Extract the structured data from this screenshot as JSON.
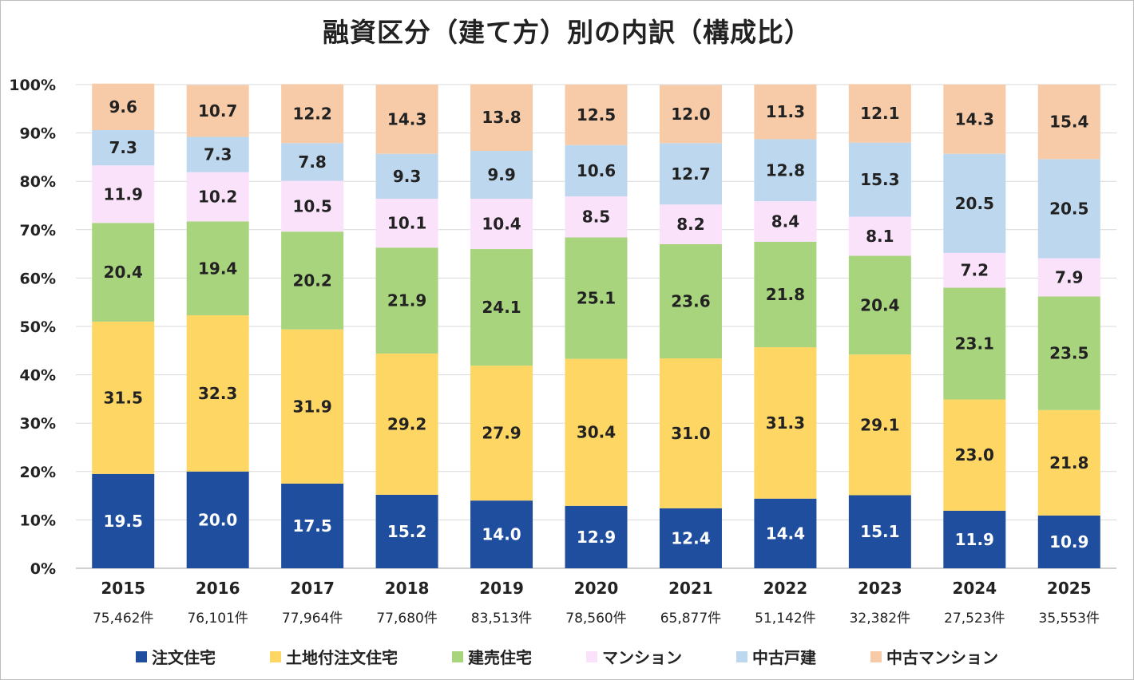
{
  "chart_data": {
    "type": "bar",
    "stacked": true,
    "title": "融資区分（建て方）別の内訳（構成比）",
    "categories": [
      "2015",
      "2016",
      "2017",
      "2018",
      "2019",
      "2020",
      "2021",
      "2022",
      "2023",
      "2024",
      "2025"
    ],
    "counts": [
      "75,462件",
      "76,101件",
      "77,964件",
      "77,680件",
      "83,513件",
      "78,560件",
      "65,877件",
      "51,142件",
      "32,382件",
      "27,523件",
      "35,553件"
    ],
    "yticks": [
      "0%",
      "10%",
      "20%",
      "30%",
      "40%",
      "50%",
      "60%",
      "70%",
      "80%",
      "90%",
      "100%"
    ],
    "ylim": [
      0,
      100
    ],
    "grid": true,
    "legend_position": "bottom",
    "series": [
      {
        "name": "注文住宅",
        "color": "#1f4e9e",
        "label_color": "#ffffff",
        "values": [
          19.5,
          20.0,
          17.5,
          15.2,
          14.0,
          12.9,
          12.4,
          14.4,
          15.1,
          11.9,
          10.9
        ]
      },
      {
        "name": "土地付注文住宅",
        "color": "#fdd663",
        "label_color": "#222222",
        "values": [
          31.5,
          32.3,
          31.9,
          29.2,
          27.9,
          30.4,
          31.0,
          31.3,
          29.1,
          23.0,
          21.8
        ]
      },
      {
        "name": "建売住宅",
        "color": "#a9d47e",
        "label_color": "#222222",
        "values": [
          20.4,
          19.4,
          20.2,
          21.9,
          24.1,
          25.1,
          23.6,
          21.8,
          20.4,
          23.1,
          23.5
        ]
      },
      {
        "name": "マンション",
        "color": "#fbe2fb",
        "label_color": "#222222",
        "values": [
          11.9,
          10.2,
          10.5,
          10.1,
          10.4,
          8.5,
          8.2,
          8.4,
          8.1,
          7.2,
          7.9
        ]
      },
      {
        "name": "中古戸建",
        "color": "#bdd7ee",
        "label_color": "#222222",
        "values": [
          7.3,
          7.3,
          7.8,
          9.3,
          9.9,
          10.6,
          12.7,
          12.8,
          15.3,
          20.5,
          20.5
        ]
      },
      {
        "name": "中古マンション",
        "color": "#f7cba8",
        "label_color": "#222222",
        "values": [
          9.6,
          10.7,
          12.2,
          14.3,
          13.8,
          12.5,
          12.0,
          11.3,
          12.1,
          14.3,
          15.4
        ]
      }
    ]
  }
}
